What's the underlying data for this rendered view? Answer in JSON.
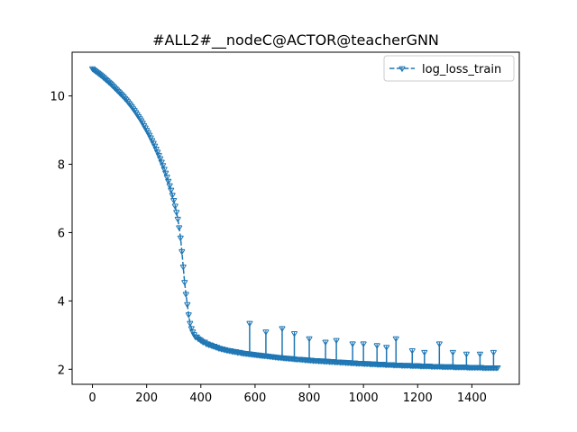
{
  "chart_data": {
    "type": "line",
    "title": "#ALL2#__nodeC@ACTOR@teacherGNN",
    "xlabel": "",
    "ylabel": "",
    "xlim": [
      -75,
      1575
    ],
    "ylim": [
      1.56,
      11.28
    ],
    "x_ticks": [
      0,
      200,
      400,
      600,
      800,
      1000,
      1200,
      1400
    ],
    "y_ticks": [
      2,
      4,
      6,
      8,
      10
    ],
    "grid": false,
    "legend_position": "top-right",
    "series": [
      {
        "name": "log_loss_train",
        "color": "#1f77b4",
        "line_style": "dashed",
        "marker": "tri_down",
        "x_start": 0,
        "x_step": 5,
        "values": [
          10.8,
          10.77,
          10.74,
          10.71,
          10.68,
          10.65,
          10.62,
          10.59,
          10.55,
          10.52,
          10.48,
          10.45,
          10.41,
          10.38,
          10.34,
          10.3,
          10.26,
          10.22,
          10.18,
          10.14,
          10.1,
          10.06,
          10.02,
          9.98,
          9.93,
          9.89,
          9.84,
          9.79,
          9.74,
          9.69,
          9.63,
          9.58,
          9.52,
          9.46,
          9.4,
          9.34,
          9.28,
          9.21,
          9.14,
          9.07,
          9.0,
          8.93,
          8.86,
          8.78,
          8.7,
          8.62,
          8.54,
          8.45,
          8.36,
          8.27,
          8.17,
          8.07,
          7.97,
          7.86,
          7.75,
          7.63,
          7.51,
          7.38,
          7.25,
          7.1,
          6.95,
          6.78,
          6.6,
          6.4,
          6.15,
          5.85,
          5.45,
          5.0,
          4.55,
          4.2,
          3.9,
          3.6,
          3.35,
          3.2,
          3.1,
          3.02,
          2.95,
          2.95,
          2.9,
          2.88,
          2.85,
          2.82,
          2.8,
          2.8,
          2.75,
          2.75,
          2.72,
          2.72,
          2.7,
          2.68,
          2.68,
          2.65,
          2.65,
          2.62,
          2.62,
          2.6,
          2.6,
          2.58,
          2.58,
          2.56,
          2.56,
          2.55,
          2.55,
          2.53,
          2.53,
          2.52,
          2.52,
          2.5,
          2.5,
          2.5,
          2.48,
          2.48,
          2.47,
          2.47,
          2.46,
          2.46,
          2.45,
          2.45,
          2.44,
          2.44,
          2.43,
          2.43,
          2.42,
          2.42,
          2.41,
          2.41,
          2.4,
          2.4,
          2.4,
          2.39,
          2.39,
          2.38,
          2.38,
          2.37,
          2.37,
          2.36,
          2.36,
          2.35,
          2.35,
          2.35,
          2.34,
          2.34,
          2.33,
          2.33,
          2.33,
          2.32,
          2.32,
          2.32,
          2.31,
          2.31,
          2.3,
          2.3,
          2.3,
          2.3,
          2.29,
          2.29,
          2.29,
          2.28,
          2.28,
          2.28,
          2.27,
          2.27,
          2.27,
          2.26,
          2.26,
          2.26,
          2.26,
          2.25,
          2.25,
          2.25,
          2.25,
          2.24,
          2.24,
          2.24,
          2.24,
          2.23,
          2.23,
          2.23,
          2.23,
          2.22,
          2.22,
          2.22,
          2.22,
          2.21,
          2.21,
          2.21,
          2.21,
          2.2,
          2.2,
          2.2,
          2.2,
          2.19,
          2.19,
          2.19,
          2.19,
          2.18,
          2.18,
          2.18,
          2.18,
          2.18,
          2.17,
          2.17,
          2.17,
          2.17,
          2.17,
          2.16,
          2.16,
          2.16,
          2.16,
          2.16,
          2.15,
          2.15,
          2.15,
          2.15,
          2.15,
          2.15,
          2.14,
          2.14,
          2.14,
          2.14,
          2.14,
          2.14,
          2.13,
          2.13,
          2.13,
          2.13,
          2.13,
          2.13,
          2.12,
          2.12,
          2.12,
          2.12,
          2.12,
          2.12,
          2.12,
          2.11,
          2.11,
          2.11,
          2.11,
          2.11,
          2.11,
          2.11,
          2.1,
          2.1,
          2.1,
          2.1,
          2.1,
          2.1,
          2.1,
          2.1,
          2.09,
          2.09,
          2.09,
          2.09,
          2.09,
          2.09,
          2.09,
          2.09,
          2.08,
          2.08,
          2.08,
          2.08,
          2.08,
          2.08,
          2.08,
          2.08,
          2.08,
          2.07,
          2.07,
          2.07,
          2.07,
          2.07,
          2.07,
          2.07,
          2.07,
          2.07,
          2.07,
          2.06,
          2.06,
          2.06,
          2.06,
          2.06,
          2.06,
          2.06,
          2.06,
          2.06,
          2.06,
          2.06,
          2.05,
          2.05,
          2.05,
          2.05,
          2.05,
          2.05,
          2.05,
          2.05,
          2.05,
          2.05,
          2.05,
          2.05
        ],
        "spikes": [
          {
            "x": 580,
            "y": 3.35
          },
          {
            "x": 640,
            "y": 3.1
          },
          {
            "x": 700,
            "y": 3.2
          },
          {
            "x": 745,
            "y": 3.05
          },
          {
            "x": 800,
            "y": 2.9
          },
          {
            "x": 860,
            "y": 2.8
          },
          {
            "x": 900,
            "y": 2.85
          },
          {
            "x": 960,
            "y": 2.75
          },
          {
            "x": 1000,
            "y": 2.75
          },
          {
            "x": 1050,
            "y": 2.7
          },
          {
            "x": 1085,
            "y": 2.65
          },
          {
            "x": 1120,
            "y": 2.9
          },
          {
            "x": 1180,
            "y": 2.55
          },
          {
            "x": 1225,
            "y": 2.5
          },
          {
            "x": 1280,
            "y": 2.75
          },
          {
            "x": 1330,
            "y": 2.5
          },
          {
            "x": 1380,
            "y": 2.45
          },
          {
            "x": 1430,
            "y": 2.45
          },
          {
            "x": 1480,
            "y": 2.5
          }
        ]
      }
    ]
  }
}
